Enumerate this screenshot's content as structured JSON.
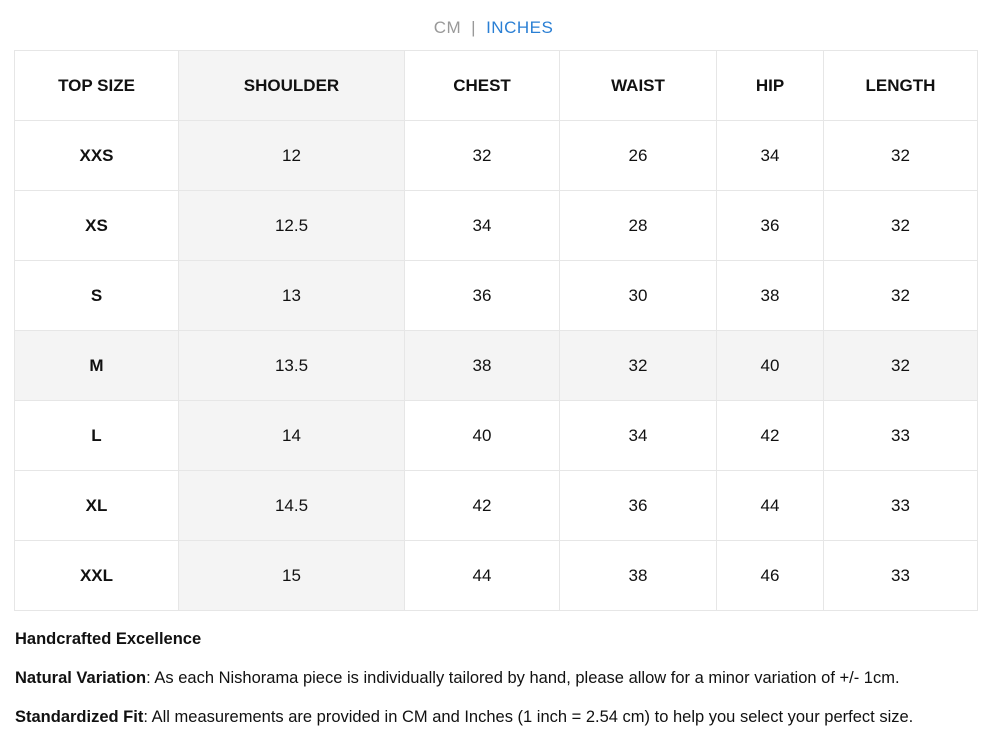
{
  "toggle": {
    "units": [
      "CM",
      "INCHES"
    ],
    "separator": "|",
    "active": 1
  },
  "table": {
    "headers": [
      "TOP SIZE",
      "SHOULDER",
      "CHEST",
      "WAIST",
      "HIP",
      "LENGTH"
    ],
    "rows": [
      [
        "XXS",
        12,
        32,
        26,
        34,
        32
      ],
      [
        "XS",
        12.5,
        34,
        28,
        36,
        32
      ],
      [
        "S",
        13,
        36,
        30,
        38,
        32
      ],
      [
        "M",
        13.5,
        38,
        32,
        40,
        32
      ],
      [
        "L",
        14,
        40,
        34,
        42,
        33
      ],
      [
        "XL",
        14.5,
        42,
        36,
        44,
        33
      ],
      [
        "XXL",
        15,
        44,
        38,
        46,
        33
      ]
    ],
    "highlight_column": 1,
    "highlight_row": 3
  },
  "notes": {
    "heading": "Handcrafted Excellence",
    "items": [
      {
        "label": "Natural Variation",
        "text": ": As each Nishorama piece is individually tailored by hand, please allow for a minor variation of +/- 1cm."
      },
      {
        "label": "Standardized Fit",
        "text": ": All measurements are provided in CM and Inches (1 inch = 2.54 cm) to help you select your perfect size."
      }
    ]
  }
}
